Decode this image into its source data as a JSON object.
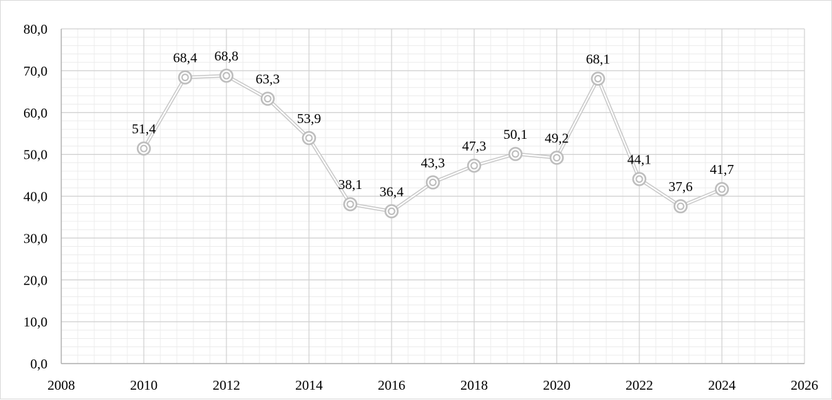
{
  "chart_data": {
    "type": "scatter",
    "mode": "lines+markers",
    "title": "",
    "xlabel": "",
    "ylabel": "",
    "xlim": [
      2008,
      2026
    ],
    "ylim": [
      0,
      80
    ],
    "x_ticks": [
      2008,
      2010,
      2012,
      2014,
      2016,
      2018,
      2020,
      2022,
      2024,
      2026
    ],
    "y_ticks": [
      "0,0",
      "10,0",
      "20,0",
      "30,0",
      "40,0",
      "50,0",
      "60,0",
      "70,0",
      "80,0"
    ],
    "grid": true,
    "minor_grid": true,
    "legend": "none",
    "series": [
      {
        "x": [
          2010,
          2011,
          2012,
          2013,
          2014,
          2015,
          2016,
          2017,
          2018,
          2019,
          2020,
          2021,
          2022,
          2023,
          2024
        ],
        "y": [
          51.4,
          68.4,
          68.8,
          63.3,
          53.9,
          38.1,
          36.4,
          43.3,
          47.3,
          50.1,
          49.2,
          68.1,
          44.1,
          37.6,
          41.7
        ],
        "labels": [
          "51,4",
          "68,4",
          "68,8",
          "63,3",
          "53,9",
          "38,1",
          "36,4",
          "43,3",
          "47,3",
          "50,1",
          "49,2",
          "68,1",
          "44,1",
          "37,6",
          "41,7"
        ]
      }
    ],
    "colors": {
      "line": "#c8c8c8",
      "marker": "#bdbdbd",
      "major_grid": "#d0d0d0",
      "minor_grid": "#ececec",
      "axis": "#a6a6a6"
    }
  }
}
